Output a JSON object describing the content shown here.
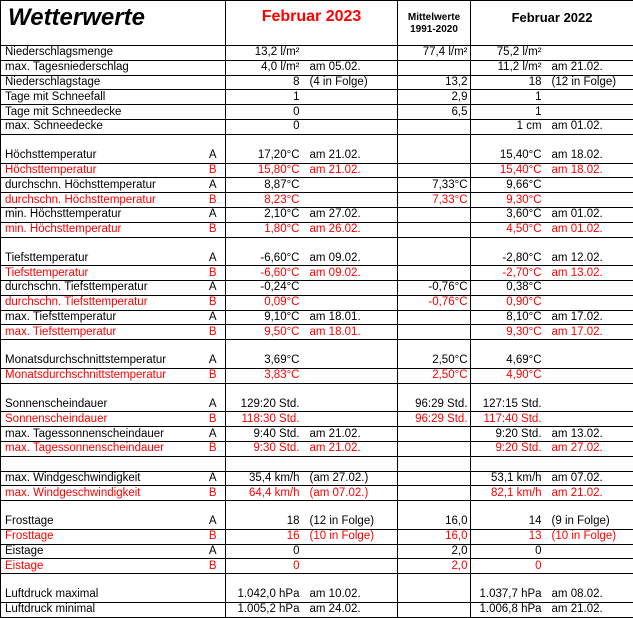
{
  "header": {
    "title": "Wetterwerte",
    "col_2023": "Februar 2023",
    "col_mean_line1": "Mittelwerte",
    "col_mean_line2": "1991-2020",
    "col_2022": "Februar 2022"
  },
  "rows": [
    {
      "label": "Niederschlagsmenge",
      "cls": "",
      "v2023": "13,2 l/m²",
      "n2023": "",
      "mean": "77,4 l/m²",
      "n_mean": "",
      "v2022": "75,2 l/m²",
      "n2022": "",
      "red": false,
      "sep": true
    },
    {
      "label": "max. Tagesniederschlag",
      "cls": "",
      "v2023": "4,0 l/m²",
      "n2023": "am 05.02.",
      "mean": "",
      "n_mean": "",
      "v2022": "11,2 l/m²",
      "n2022": "am 21.02.",
      "red": false,
      "sep": true
    },
    {
      "label": "Niederschlagstage",
      "cls": "",
      "v2023": "8",
      "n2023": "(4 in Folge)",
      "mean": "13,2",
      "n_mean": "",
      "v2022": "18",
      "n2022": "(12 in Folge)",
      "red": false,
      "sep": true
    },
    {
      "label": "Tage mit Schneefall",
      "cls": "",
      "v2023": "1",
      "n2023": "",
      "mean": "2,9",
      "n_mean": "",
      "v2022": "1",
      "n2022": "",
      "red": false,
      "sep": true
    },
    {
      "label": "Tage mit Schneedecke",
      "cls": "",
      "v2023": "0",
      "n2023": "",
      "mean": "6,5",
      "n_mean": "",
      "v2022": "1",
      "n2022": "",
      "red": false,
      "sep": true
    },
    {
      "label": "max. Schneedecke",
      "cls": "",
      "v2023": "0",
      "n2023": "",
      "mean": "",
      "n_mean": "",
      "v2022": "1 cm",
      "n2022": "am 01.02.",
      "red": false,
      "sep": true
    },
    {
      "blank": true,
      "sep": true
    },
    {
      "label": "Höchsttemperatur",
      "cls": "A",
      "v2023": "17,20°C",
      "n2023": "am 21.02.",
      "mean": "",
      "n_mean": "",
      "v2022": "15,40°C",
      "n2022": "am 18.02.",
      "red": false,
      "sep": false
    },
    {
      "label": "Höchsttemperatur",
      "cls": "B",
      "v2023": "15,80°C",
      "n2023": "am 21.02.",
      "mean": "",
      "n_mean": "",
      "v2022": "15,40°C",
      "n2022": "am 18.02.",
      "red": true,
      "sep": true
    },
    {
      "label": "durchschn. Höchsttemperatur",
      "cls": "A",
      "v2023": "8,87°C",
      "n2023": "",
      "mean": "7,33°C",
      "n_mean": "",
      "v2022": "9,66°C",
      "n2022": "",
      "red": false,
      "sep": true
    },
    {
      "label": "durchschn. Höchsttemperatur",
      "cls": "B",
      "v2023": "8,23°C",
      "n2023": "",
      "mean": "7,33°C",
      "n_mean": "",
      "v2022": "9,30°C",
      "n2022": "",
      "red": true,
      "sep": true
    },
    {
      "label": "min. Höchsttemperatur",
      "cls": "A",
      "v2023": "2,10°C",
      "n2023": "am 27.02.",
      "mean": "",
      "n_mean": "",
      "v2022": "3,60°C",
      "n2022": "am 01.02.",
      "red": false,
      "sep": true
    },
    {
      "label": "min. Höchsttemperatur",
      "cls": "B",
      "v2023": "1,80°C",
      "n2023": "am 26.02.",
      "mean": "",
      "n_mean": "",
      "v2022": "4,50°C",
      "n2022": "am 01.02.",
      "red": true,
      "sep": true
    },
    {
      "blank": true,
      "sep": true
    },
    {
      "label": "Tiefsttemperatur",
      "cls": "A",
      "v2023": "-6,60°C",
      "n2023": "am 09.02.",
      "mean": "",
      "n_mean": "",
      "v2022": "-2,80°C",
      "n2022": "am 12.02.",
      "red": false,
      "sep": false
    },
    {
      "label": "Tiefsttemperatur",
      "cls": "B",
      "v2023": "-6,60°C",
      "n2023": "am 09.02.",
      "mean": "",
      "n_mean": "",
      "v2022": "-2,70°C",
      "n2022": "am 13.02.",
      "red": true,
      "sep": true
    },
    {
      "label": "durchschn. Tiefsttemperatur",
      "cls": "A",
      "v2023": "-0,24°C",
      "n2023": "",
      "mean": "-0,76°C",
      "n_mean": "",
      "v2022": "0,38°C",
      "n2022": "",
      "red": false,
      "sep": true
    },
    {
      "label": "durchschn. Tiefsttemperatur",
      "cls": "B",
      "v2023": "0,09°C",
      "n2023": "",
      "mean": "-0,76°C",
      "n_mean": "",
      "v2022": "0,90°C",
      "n2022": "",
      "red": true,
      "sep": true
    },
    {
      "label": "max. Tiefsttemperatur",
      "cls": "A",
      "v2023": "9,10°C",
      "n2023": "am 18.01.",
      "mean": "",
      "n_mean": "",
      "v2022": "8,10°C",
      "n2022": "am 17.02.",
      "red": false,
      "sep": true
    },
    {
      "label": "max. Tiefsttemperatur",
      "cls": "B",
      "v2023": "9,50°C",
      "n2023": "am 18.01.",
      "mean": "",
      "n_mean": "",
      "v2022": "9,30°C",
      "n2022": "am 17.02.",
      "red": true,
      "sep": true
    },
    {
      "blank": true,
      "sep": true
    },
    {
      "label": "Monatsdurchschnittstemperatur",
      "cls": "A",
      "v2023": "3,69°C",
      "n2023": "",
      "mean": "2,50°C",
      "n_mean": "",
      "v2022": "4,69°C",
      "n2022": "",
      "red": false,
      "sep": false
    },
    {
      "label": "Monatsdurchschnittstemperatur",
      "cls": "B",
      "v2023": "3,83°C",
      "n2023": "",
      "mean": "2,50°C",
      "n_mean": "",
      "v2022": "4,90°C",
      "n2022": "",
      "red": true,
      "sep": true
    },
    {
      "blank": true,
      "sep": true
    },
    {
      "label": "Sonnenscheindauer",
      "cls": "A",
      "v2023": "129:20 Std.",
      "n2023": "",
      "mean": "96:29 Std.",
      "n_mean": "",
      "v2022": "127:15 Std.",
      "n2022": "",
      "red": false,
      "sep": false
    },
    {
      "label": "Sonnenscheindauer",
      "cls": "B",
      "v2023": "118:30 Std.",
      "n2023": "",
      "mean": "96:29 Std.",
      "n_mean": "",
      "v2022": "117:40 Std.",
      "n2022": "",
      "red": true,
      "sep": true
    },
    {
      "label": "max. Tagessonnenscheindauer",
      "cls": "A",
      "v2023": "9:40 Std.",
      "n2023": "am 21.02.",
      "mean": "",
      "n_mean": "",
      "v2022": "9:20 Std.",
      "n2022": "am 13.02.",
      "red": false,
      "sep": true
    },
    {
      "label": "max. Tagessonnenscheindauer",
      "cls": "B",
      "v2023": "9:30 Std.",
      "n2023": "am 21.02.",
      "mean": "",
      "n_mean": "",
      "v2022": "9:20 Std.",
      "n2022": "am 27.02.",
      "red": true,
      "sep": true
    },
    {
      "blank": true,
      "sep": true
    },
    {
      "label": "max. Windgeschwindigkeit",
      "cls": "A",
      "v2023": "35,4 km/h",
      "n2023": "(am 27.02.)",
      "mean": "",
      "n_mean": "",
      "v2022": "53,1 km/h",
      "n2022": "am 07.02.",
      "red": false,
      "sep": true
    },
    {
      "label": "max. Windgeschwindigkeit",
      "cls": "B",
      "v2023": "64,4 km/h",
      "n2023": "(am 07.02.)",
      "mean": "",
      "n_mean": "",
      "v2022": "82,1 km/h",
      "n2022": "am 21.02.",
      "red": true,
      "sep": true
    },
    {
      "blank": true,
      "sep": true
    },
    {
      "label": "Frosttage",
      "cls": "A",
      "v2023": "18",
      "n2023": "(12 in Folge)",
      "mean": "16,0",
      "n_mean": "",
      "v2022": "14",
      "n2022": "(9 in Folge)",
      "red": false,
      "sep": false
    },
    {
      "label": "Frosttage",
      "cls": "B",
      "v2023": "16",
      "n2023": "(10 in Folge)",
      "mean": "16,0",
      "n_mean": "",
      "v2022": "13",
      "n2022": "(10 in Folge)",
      "red": true,
      "sep": true
    },
    {
      "label": "Eistage",
      "cls": "A",
      "v2023": "0",
      "n2023": "",
      "mean": "2,0",
      "n_mean": "",
      "v2022": "0",
      "n2022": "",
      "red": false,
      "sep": true
    },
    {
      "label": "Eistage",
      "cls": "B",
      "v2023": "0",
      "n2023": "",
      "mean": "2,0",
      "n_mean": "",
      "v2022": "0",
      "n2022": "",
      "red": true,
      "sep": true
    },
    {
      "blank": true,
      "sep": true
    },
    {
      "label": "Luftdruck maximal",
      "cls": "",
      "v2023": "1.042,0 hPa",
      "n2023": "am 10.02.",
      "mean": "",
      "n_mean": "",
      "v2022": "1.037,7 hPa",
      "n2022": "am 08.02.",
      "red": false,
      "sep": false
    },
    {
      "label": "Luftdruck minimal",
      "cls": "",
      "v2023": "1.005,2 hPa",
      "n2023": "am 24.02.",
      "mean": "",
      "n_mean": "",
      "v2022": "1.006,8 hPa",
      "n2022": "am 21.02.",
      "red": false,
      "sep": true
    }
  ]
}
